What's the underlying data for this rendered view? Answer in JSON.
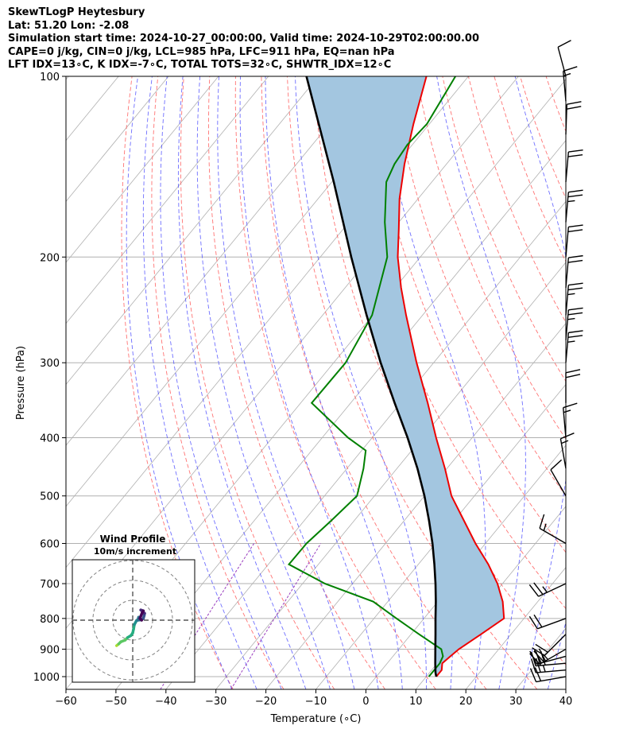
{
  "header": {
    "title": "SkewTLogP Heytesbury",
    "location": "Lat: 51.20   Lon: -2.08",
    "times": "Simulation start time: 2024-10-27_00:00:00, Valid time: 2024-10-29T02:00:00.00",
    "indices1": "CAPE=0 j/kg, CIN=0 j/kg, LCL=985 hPa, LFC=911 hPa, EQ=nan hPa",
    "indices2": "LFT IDX=13∘C, K IDX=-7∘C, TOTAL TOTS=32∘C, SHWTR_IDX=12∘C"
  },
  "chart_data": {
    "type": "skew-t",
    "xlabel": "Temperature (∘C)",
    "ylabel": "Pressure (hPa)",
    "xlim": [
      -60,
      40
    ],
    "ylim": [
      1050,
      100
    ],
    "xticks": [
      -60,
      -50,
      -40,
      -30,
      -20,
      -10,
      0,
      10,
      20,
      30,
      40
    ],
    "yticks": [
      1000,
      900,
      800,
      700,
      600,
      500,
      400,
      300,
      200,
      100
    ],
    "temperature": {
      "p": [
        1000,
        975,
        950,
        925,
        900,
        850,
        800,
        750,
        700,
        650,
        600,
        550,
        500,
        450,
        400,
        350,
        300,
        250,
        225,
        200,
        180,
        160,
        140,
        120,
        100
      ],
      "t": [
        12,
        12,
        11,
        11.5,
        12,
        14,
        16,
        13,
        9,
        4,
        -2,
        -8,
        -14.6,
        -20.4,
        -27.2,
        -34.6,
        -43.4,
        -53.3,
        -58.8,
        -64.5,
        -68.8,
        -73.7,
        -78.4,
        -83.2,
        -88.4
      ]
    },
    "dewpoint": {
      "p": [
        1000,
        975,
        950,
        925,
        900,
        850,
        800,
        750,
        700,
        650,
        600,
        550,
        500,
        450,
        420,
        400,
        350,
        300,
        250,
        200,
        175,
        150,
        140,
        130,
        120,
        100
      ],
      "t": [
        10.5,
        10.5,
        10.5,
        10,
        8.5,
        1.6,
        -5.5,
        -12.9,
        -25.5,
        -35.9,
        -35.8,
        -34.6,
        -33.5,
        -36.7,
        -39.2,
        -44.8,
        -57.8,
        -57.6,
        -60.1,
        -66.6,
        -72.8,
        -79.1,
        -80.4,
        -81,
        -80.5,
        -82.6
      ]
    },
    "parcel": {
      "p": [
        1000,
        985,
        950,
        900,
        850,
        800,
        750,
        700,
        650,
        600,
        550,
        500,
        450,
        400,
        350,
        300,
        250,
        200,
        150,
        100
      ],
      "t": [
        12,
        11.2,
        9.6,
        7.3,
        4.9,
        2.3,
        -0.4,
        -3.4,
        -6.8,
        -10.6,
        -15,
        -20,
        -25.9,
        -32.9,
        -41.2,
        -50.6,
        -61.2,
        -73.8,
        -89.6,
        -112.4
      ]
    },
    "shading": "negative buoyancy area between parcel and temperature profile",
    "wind_barbs": [
      {
        "p": 1000,
        "speed": 20,
        "dir": 260
      },
      {
        "p": 975,
        "speed": 25,
        "dir": 265
      },
      {
        "p": 950,
        "speed": 30,
        "dir": 265
      },
      {
        "p": 925,
        "speed": 30,
        "dir": 255
      },
      {
        "p": 900,
        "speed": 25,
        "dir": 240
      },
      {
        "p": 850,
        "speed": 20,
        "dir": 225
      },
      {
        "p": 800,
        "speed": 20,
        "dir": 250
      },
      {
        "p": 700,
        "speed": 25,
        "dir": 245
      },
      {
        "p": 600,
        "speed": 15,
        "dir": 300
      },
      {
        "p": 500,
        "speed": 10,
        "dir": 330
      },
      {
        "p": 450,
        "speed": 15,
        "dir": 350
      },
      {
        "p": 400,
        "speed": 15,
        "dir": 355
      },
      {
        "p": 350,
        "speed": 20,
        "dir": 0
      },
      {
        "p": 300,
        "speed": 25,
        "dir": 5
      },
      {
        "p": 275,
        "speed": 25,
        "dir": 5
      },
      {
        "p": 250,
        "speed": 25,
        "dir": 5
      },
      {
        "p": 225,
        "speed": 20,
        "dir": 5
      },
      {
        "p": 200,
        "speed": 20,
        "dir": 5
      },
      {
        "p": 175,
        "speed": 25,
        "dir": 5
      },
      {
        "p": 150,
        "speed": 20,
        "dir": 5
      },
      {
        "p": 125,
        "speed": 20,
        "dir": 2
      },
      {
        "p": 110,
        "speed": 15,
        "dir": 355
      },
      {
        "p": 100,
        "speed": 10,
        "dir": 345
      }
    ],
    "hodograph": {
      "title": "Wind Profile",
      "subtitle": "10m/s increment",
      "u": [
        -3.8,
        -3.3,
        -2.8,
        -1.8,
        -1.2,
        -0.4,
        0.0,
        0.2,
        0.4,
        0.9,
        1.4,
        1.6,
        1.4,
        1.2,
        2.1,
        2.5,
        2.7,
        2.8,
        2.3,
        1.9,
        2.5,
        2.2,
        1.7,
        2.1
      ],
      "v": [
        -6.0,
        -5.6,
        -5.1,
        -4.7,
        -4.1,
        -3.6,
        -3.0,
        -2.1,
        -1.0,
        -0.1,
        0.3,
        0.1,
        0.7,
        0.0,
        0.1,
        0.4,
        1.1,
        1.6,
        2.1,
        2.4,
        2.2,
        1.7,
        0.4,
        0.0
      ],
      "rings": [
        10,
        20,
        30
      ]
    }
  }
}
